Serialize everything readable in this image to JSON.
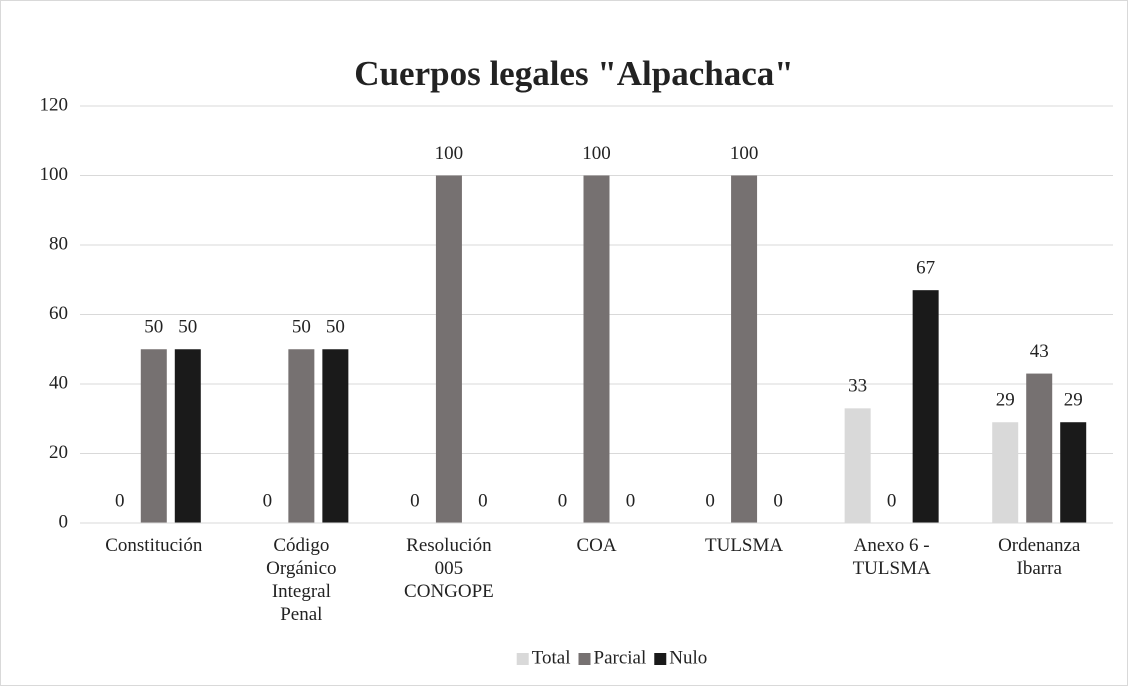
{
  "chart_data": {
    "type": "bar",
    "title": "Cuerpos legales \"Alpachaca\"",
    "categories": [
      "Constitución",
      "Código Orgánico Integral Penal",
      "Resolución 005 CONGOPE",
      "COA",
      "TULSMA",
      "Anexo 6 - TULSMA",
      "Ordenanza Ibarra"
    ],
    "series": [
      {
        "name": "Total",
        "color": "#d9d9d9",
        "values": [
          0,
          0,
          0,
          0,
          0,
          33,
          29
        ]
      },
      {
        "name": "Parcial",
        "color": "#767171",
        "values": [
          50,
          50,
          100,
          100,
          100,
          0,
          43
        ]
      },
      {
        "name": "Nulo",
        "color": "#1a1a1a",
        "values": [
          50,
          50,
          0,
          0,
          0,
          67,
          29
        ]
      }
    ],
    "ylim": [
      0,
      120
    ],
    "yticks": [
      0,
      20,
      40,
      60,
      80,
      100,
      120
    ],
    "grid": true,
    "legend": "bottom"
  }
}
